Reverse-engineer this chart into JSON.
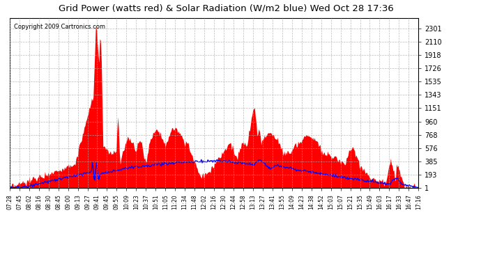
{
  "title": "Grid Power (watts red) & Solar Radiation (W/m2 blue) Wed Oct 28 17:36",
  "copyright_text": "Copyright 2009 Cartronics.com",
  "bg_color": "#ffffff",
  "plot_bg_color": "#ffffff",
  "grid_color": "#aaaaaa",
  "red_fill_color": "#ff0000",
  "blue_line_color": "#0000ff",
  "yticks": [
    1.4,
    193.1,
    384.8,
    576.4,
    768.1,
    959.8,
    1151.4,
    1343.1,
    1534.8,
    1726.4,
    1918.1,
    2109.8,
    2301.4
  ],
  "ymin": 0,
  "ymax": 2450,
  "x_labels": [
    "07:28",
    "07:45",
    "08:02",
    "08:16",
    "08:30",
    "08:45",
    "09:00",
    "09:13",
    "09:27",
    "09:41",
    "09:45",
    "09:55",
    "10:09",
    "10:23",
    "10:37",
    "10:51",
    "11:05",
    "11:20",
    "11:34",
    "11:48",
    "12:02",
    "12:16",
    "12:30",
    "12:44",
    "12:58",
    "13:13",
    "13:27",
    "13:41",
    "13:55",
    "14:09",
    "14:23",
    "14:38",
    "14:52",
    "15:03",
    "15:07",
    "15:21",
    "15:35",
    "15:49",
    "16:03",
    "16:17",
    "16:33",
    "16:47",
    "17:16"
  ],
  "n_points": 500
}
